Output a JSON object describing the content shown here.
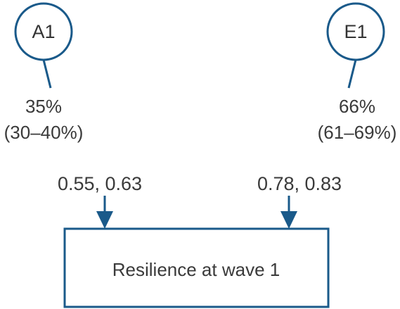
{
  "colors": {
    "stroke": "#1a5a8a",
    "text": "#3a3a3a"
  },
  "nodes": {
    "a1": {
      "label": "A1",
      "estimate": "35%",
      "interval": "(30–40%)",
      "path_coefficients": "0.55, 0.63"
    },
    "e1": {
      "label": "E1",
      "estimate": "66%",
      "interval": "(61–69%)",
      "path_coefficients": "0.78, 0.83"
    }
  },
  "outcome": {
    "label": "Resilience at wave 1"
  }
}
